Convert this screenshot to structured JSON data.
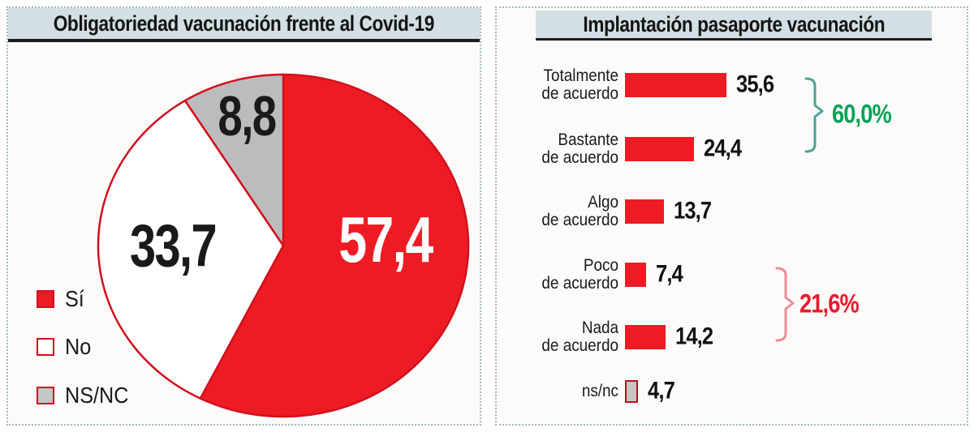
{
  "page": {
    "background": "#ffffff",
    "accent_red": "#ed1c24",
    "title_bg": "#d3dfe4"
  },
  "left_panel": {
    "legend": [
      {
        "label": "Sí",
        "fill": "#ed1c24",
        "border": "#d1101c"
      },
      {
        "label": "No",
        "fill": "#ffffff",
        "border": "#d1101c"
      },
      {
        "label": "NS/NC",
        "fill": "#c6c5c8",
        "border": "#d1101c"
      }
    ]
  },
  "chart_data": [
    {
      "type": "pie",
      "title": "Obligatoriedad vacunación frente al Covid-19",
      "labels": [
        "Sí",
        "No",
        "NS/NC"
      ],
      "values": [
        57.4,
        33.7,
        8.8
      ],
      "display_values": [
        "57,4",
        "33,7",
        "8,8"
      ],
      "colors": [
        "#ed1c24",
        "#ffffff",
        "#bcbcbf"
      ],
      "value_label_colors": [
        "#ffffff",
        "#1a1a1a",
        "#1a1a1a"
      ],
      "outline_color": "#d1101c",
      "start": "12-oclock",
      "direction": "clockwise",
      "legend_position": "bottom-left"
    },
    {
      "type": "bar",
      "orientation": "horizontal",
      "title": "Implantación pasaporte vacunación",
      "categories": [
        "Totalmente de acuerdo",
        "Bastante de acuerdo",
        "Algo de acuerdo",
        "Poco de acuerdo",
        "Nada de acuerdo",
        "ns/nc"
      ],
      "category_lines": [
        [
          "Totalmente",
          "de acuerdo"
        ],
        [
          "Bastante",
          "de acuerdo"
        ],
        [
          "Algo",
          "de acuerdo"
        ],
        [
          "Poco",
          "de acuerdo"
        ],
        [
          "Nada",
          "de acuerdo"
        ],
        [
          "ns/nc"
        ]
      ],
      "values": [
        35.6,
        24.4,
        13.7,
        7.4,
        14.2,
        4.7
      ],
      "display_values": [
        "35,6",
        "24,4",
        "13,7",
        "7,4",
        "14,2",
        "4,7"
      ],
      "bar_colors": [
        "#ed1c24",
        "#ed1c24",
        "#ed1c24",
        "#ed1c24",
        "#ed1c24",
        "#c6c5c8"
      ],
      "bar_borders": [
        "none",
        "none",
        "none",
        "none",
        "none",
        "#b5121c"
      ],
      "xlim": [
        0,
        40
      ],
      "grid": false,
      "annotations": [
        {
          "text": "60,0%",
          "text_color": "#00a356",
          "bracket_color": "#4aa496",
          "covers": [
            "Totalmente de acuerdo",
            "Bastante de acuerdo"
          ],
          "rows": [
            0,
            1
          ]
        },
        {
          "text": "21,6%",
          "text_color": "#e8192c",
          "bracket_color": "#f08a94",
          "covers": [
            "Poco de acuerdo",
            "Nada de acuerdo"
          ],
          "rows": [
            3,
            4
          ]
        }
      ]
    }
  ]
}
